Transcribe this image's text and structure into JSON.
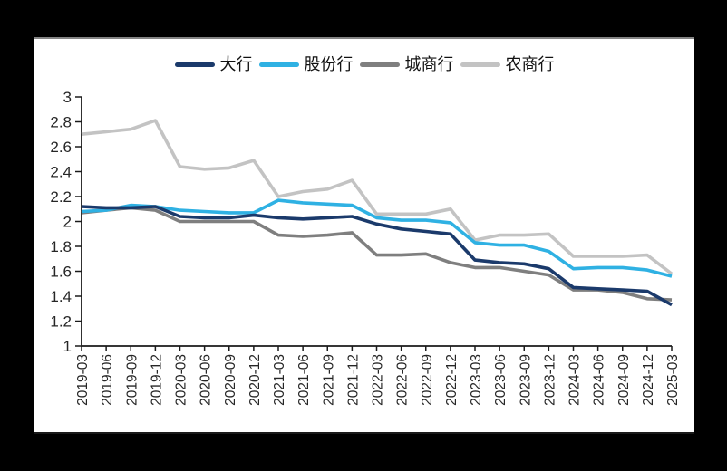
{
  "window": {
    "background_color": "#000000",
    "panel_background": "#ffffff",
    "panel_top_border_color": "#848484",
    "panel_bottom_border_color": "#1a1a1a"
  },
  "legend": {
    "items": [
      {
        "label": "大行",
        "color": "#1b3a6b"
      },
      {
        "label": "股份行",
        "color": "#2fb1e3"
      },
      {
        "label": "城商行",
        "color": "#7f7f7f"
      },
      {
        "label": "农商行",
        "color": "#c3c3c3"
      }
    ]
  },
  "chart_data": {
    "type": "line",
    "title": "",
    "xlabel": "",
    "ylabel": "",
    "ylim": [
      1,
      3
    ],
    "ytick_step": 0.2,
    "yticks": [
      "3",
      "2.8",
      "2.6",
      "2.4",
      "2.2",
      "2",
      "1.8",
      "1.6",
      "1.4",
      "1.2",
      "1"
    ],
    "grid": false,
    "legend_position": "top-center",
    "categories": [
      "2019-03",
      "2019-06",
      "2019-09",
      "2019-12",
      "2020-03",
      "2020-06",
      "2020-09",
      "2020-12",
      "2021-03",
      "2021-06",
      "2021-09",
      "2021-12",
      "2022-03",
      "2022-06",
      "2022-09",
      "2022-12",
      "2023-03",
      "2023-06",
      "2023-09",
      "2023-12",
      "2024-03",
      "2024-06",
      "2024-09",
      "2024-12",
      "2025-03"
    ],
    "series": [
      {
        "name": "大行",
        "color": "#1b3a6b",
        "values": [
          2.12,
          2.11,
          2.11,
          2.12,
          2.04,
          2.03,
          2.03,
          2.05,
          2.03,
          2.02,
          2.03,
          2.04,
          1.98,
          1.94,
          1.92,
          1.9,
          1.69,
          1.67,
          1.66,
          1.62,
          1.47,
          1.46,
          1.45,
          1.44,
          1.33
        ]
      },
      {
        "name": "股份行",
        "color": "#2fb1e3",
        "values": [
          2.08,
          2.09,
          2.13,
          2.12,
          2.09,
          2.08,
          2.07,
          2.07,
          2.17,
          2.15,
          2.14,
          2.13,
          2.03,
          2.01,
          2.01,
          1.99,
          1.83,
          1.81,
          1.81,
          1.76,
          1.62,
          1.63,
          1.63,
          1.61,
          1.56
        ]
      },
      {
        "name": "城商行",
        "color": "#7f7f7f",
        "values": [
          2.07,
          2.09,
          2.11,
          2.09,
          2.0,
          2.0,
          2.0,
          2.0,
          1.89,
          1.88,
          1.89,
          1.91,
          1.73,
          1.73,
          1.74,
          1.67,
          1.63,
          1.63,
          1.6,
          1.57,
          1.45,
          1.45,
          1.43,
          1.38,
          1.37
        ]
      },
      {
        "name": "农商行",
        "color": "#c3c3c3",
        "values": [
          2.7,
          2.72,
          2.74,
          2.81,
          2.44,
          2.42,
          2.43,
          2.49,
          2.2,
          2.24,
          2.26,
          2.33,
          2.06,
          2.06,
          2.06,
          2.1,
          1.85,
          1.89,
          1.89,
          1.9,
          1.72,
          1.72,
          1.72,
          1.73,
          1.58
        ]
      }
    ]
  }
}
